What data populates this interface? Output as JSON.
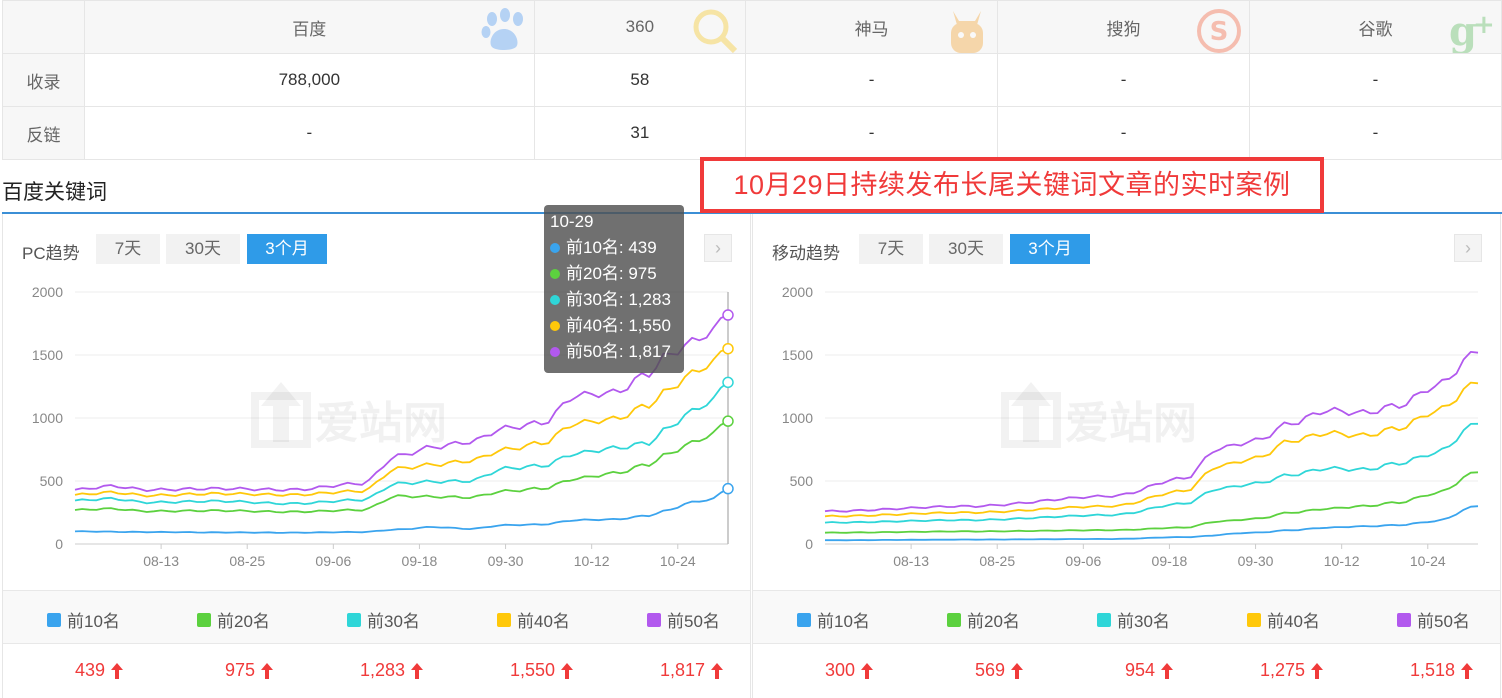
{
  "engine_table": {
    "headers": [
      "百度",
      "360",
      "神马",
      "搜狗",
      "谷歌"
    ],
    "logos": [
      "paw-icon",
      "magnifier-icon",
      "alpaca-icon",
      "sogou-s-icon",
      "google-plus-icon"
    ],
    "rows": [
      {
        "label": "收录",
        "values": [
          "788,000",
          "58",
          "-",
          "-",
          "-"
        ]
      },
      {
        "label": "反链",
        "values": [
          "-",
          "31",
          "-",
          "-",
          "-"
        ]
      }
    ]
  },
  "section": {
    "title": "百度关键词",
    "banner": "10月29日持续发布长尾关键词文章的实时案例"
  },
  "colors": {
    "top10": "#3aa4ee",
    "top20": "#5cd13f",
    "top30": "#2fd6d8",
    "top40": "#ffc80a",
    "top50": "#b259ee",
    "accent": "#2f9be8",
    "red": "#f03a3a"
  },
  "legend": [
    "前10名",
    "前20名",
    "前30名",
    "前40名",
    "前50名"
  ],
  "pc_panel": {
    "title": "PC趋势",
    "ranges": [
      "7天",
      "30天",
      "3个月"
    ],
    "active_range": "3个月",
    "watermark": "爱站网",
    "values": [
      "439",
      "975",
      "1,283",
      "1,550",
      "1,817"
    ],
    "tooltip": {
      "date": "10-29",
      "lines": [
        "前10名: 439",
        "前20名: 975",
        "前30名: 1,283",
        "前40名: 1,550",
        "前50名: 1,817"
      ]
    }
  },
  "mobile_panel": {
    "title": "移动趋势",
    "ranges": [
      "7天",
      "30天",
      "3个月"
    ],
    "active_range": "3个月",
    "watermark": "爱站网",
    "values": [
      "300",
      "569",
      "954",
      "1,275",
      "1,518"
    ]
  },
  "chart_data": [
    {
      "type": "line",
      "title": "PC趋势",
      "x_ticks": [
        "08-13",
        "08-25",
        "09-06",
        "09-18",
        "09-30",
        "10-12",
        "10-24"
      ],
      "y_ticks": [
        0,
        500,
        1000,
        1500,
        2000
      ],
      "ylim": [
        0,
        2000
      ],
      "x_count": 92,
      "last_date": "10-29",
      "series": [
        {
          "name": "前10名",
          "anchors": [
            [
              0,
              100
            ],
            [
              10,
              95
            ],
            [
              20,
              92
            ],
            [
              30,
              90
            ],
            [
              40,
              95
            ],
            [
              45,
              115
            ],
            [
              50,
              135
            ],
            [
              55,
              120
            ],
            [
              60,
              150
            ],
            [
              65,
              155
            ],
            [
              70,
              190
            ],
            [
              75,
              195
            ],
            [
              80,
              225
            ],
            [
              82,
              260
            ],
            [
              86,
              330
            ],
            [
              89,
              360
            ],
            [
              91,
              439
            ]
          ]
        },
        {
          "name": "前20名",
          "anchors": [
            [
              0,
              270
            ],
            [
              5,
              280
            ],
            [
              10,
              260
            ],
            [
              20,
              265
            ],
            [
              30,
              255
            ],
            [
              40,
              270
            ],
            [
              45,
              380
            ],
            [
              50,
              375
            ],
            [
              55,
              370
            ],
            [
              60,
              420
            ],
            [
              65,
              440
            ],
            [
              70,
              520
            ],
            [
              75,
              560
            ],
            [
              80,
              630
            ],
            [
              82,
              700
            ],
            [
              86,
              800
            ],
            [
              89,
              880
            ],
            [
              91,
              975
            ]
          ]
        },
        {
          "name": "前30名",
          "anchors": [
            [
              0,
              345
            ],
            [
              5,
              360
            ],
            [
              10,
              330
            ],
            [
              20,
              340
            ],
            [
              30,
              320
            ],
            [
              40,
              350
            ],
            [
              45,
              480
            ],
            [
              50,
              495
            ],
            [
              55,
              500
            ],
            [
              60,
              600
            ],
            [
              65,
              620
            ],
            [
              70,
              720
            ],
            [
              75,
              760
            ],
            [
              80,
              800
            ],
            [
              82,
              900
            ],
            [
              86,
              1050
            ],
            [
              89,
              1150
            ],
            [
              91,
              1283
            ]
          ]
        },
        {
          "name": "前40名",
          "anchors": [
            [
              0,
              390
            ],
            [
              5,
              410
            ],
            [
              10,
              385
            ],
            [
              20,
              400
            ],
            [
              30,
              390
            ],
            [
              40,
              420
            ],
            [
              45,
              600
            ],
            [
              50,
              630
            ],
            [
              55,
              660
            ],
            [
              60,
              750
            ],
            [
              65,
              800
            ],
            [
              70,
              960
            ],
            [
              75,
              990
            ],
            [
              80,
              1100
            ],
            [
              82,
              1200
            ],
            [
              86,
              1350
            ],
            [
              89,
              1450
            ],
            [
              91,
              1550
            ]
          ]
        },
        {
          "name": "前50名",
          "anchors": [
            [
              0,
              430
            ],
            [
              5,
              460
            ],
            [
              10,
              430
            ],
            [
              20,
              440
            ],
            [
              30,
              430
            ],
            [
              40,
              480
            ],
            [
              45,
              700
            ],
            [
              50,
              770
            ],
            [
              55,
              810
            ],
            [
              60,
              920
            ],
            [
              65,
              960
            ],
            [
              70,
              1180
            ],
            [
              75,
              1200
            ],
            [
              80,
              1350
            ],
            [
              82,
              1480
            ],
            [
              86,
              1600
            ],
            [
              89,
              1700
            ],
            [
              91,
              1817
            ]
          ]
        }
      ]
    },
    {
      "type": "line",
      "title": "移动趋势",
      "x_ticks": [
        "08-13",
        "08-25",
        "09-06",
        "09-18",
        "09-30",
        "10-12",
        "10-24"
      ],
      "y_ticks": [
        0,
        500,
        1000,
        1500,
        2000
      ],
      "ylim": [
        0,
        2000
      ],
      "x_count": 92,
      "series": [
        {
          "name": "前10名",
          "anchors": [
            [
              0,
              30
            ],
            [
              20,
              35
            ],
            [
              40,
              40
            ],
            [
              50,
              55
            ],
            [
              60,
              90
            ],
            [
              65,
              110
            ],
            [
              70,
              130
            ],
            [
              75,
              140
            ],
            [
              80,
              150
            ],
            [
              85,
              180
            ],
            [
              91,
              300
            ]
          ]
        },
        {
          "name": "前20名",
          "anchors": [
            [
              0,
              90
            ],
            [
              20,
              100
            ],
            [
              40,
              110
            ],
            [
              50,
              130
            ],
            [
              55,
              180
            ],
            [
              60,
              200
            ],
            [
              65,
              250
            ],
            [
              70,
              280
            ],
            [
              75,
              300
            ],
            [
              80,
              330
            ],
            [
              85,
              400
            ],
            [
              91,
              569
            ]
          ]
        },
        {
          "name": "前30名",
          "anchors": [
            [
              0,
              170
            ],
            [
              20,
              190
            ],
            [
              40,
              230
            ],
            [
              50,
              320
            ],
            [
              55,
              440
            ],
            [
              60,
              480
            ],
            [
              65,
              550
            ],
            [
              70,
              600
            ],
            [
              75,
              590
            ],
            [
              80,
              640
            ],
            [
              85,
              720
            ],
            [
              91,
              954
            ]
          ]
        },
        {
          "name": "前40名",
          "anchors": [
            [
              0,
              220
            ],
            [
              20,
              250
            ],
            [
              40,
              300
            ],
            [
              50,
              420
            ],
            [
              55,
              620
            ],
            [
              60,
              680
            ],
            [
              65,
              820
            ],
            [
              70,
              880
            ],
            [
              75,
              860
            ],
            [
              80,
              920
            ],
            [
              85,
              1050
            ],
            [
              91,
              1275
            ]
          ]
        },
        {
          "name": "前50名",
          "anchors": [
            [
              0,
              260
            ],
            [
              20,
              300
            ],
            [
              40,
              380
            ],
            [
              50,
              520
            ],
            [
              55,
              760
            ],
            [
              60,
              820
            ],
            [
              65,
              960
            ],
            [
              70,
              1060
            ],
            [
              75,
              1040
            ],
            [
              80,
              1100
            ],
            [
              85,
              1250
            ],
            [
              91,
              1518
            ]
          ]
        }
      ]
    }
  ]
}
